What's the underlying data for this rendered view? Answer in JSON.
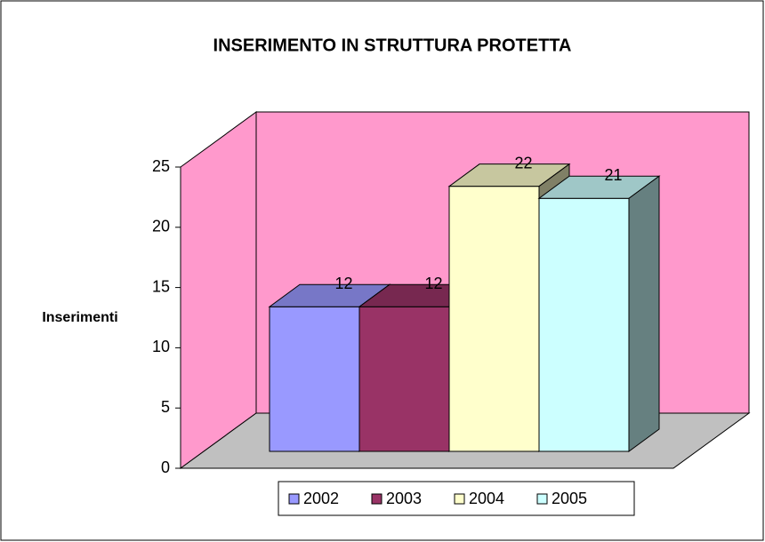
{
  "chart_data": {
    "type": "bar3d",
    "title": "INSERIMENTO  IN STRUTTURA PROTETTA",
    "y_label": "Inserimenti",
    "categories": [
      null
    ],
    "series": [
      {
        "name": "2002",
        "color": "#9999ff",
        "values": [
          12
        ]
      },
      {
        "name": "2003",
        "color": "#993366",
        "values": [
          12
        ]
      },
      {
        "name": "2004",
        "color": "#ffffcc",
        "values": [
          22
        ]
      },
      {
        "name": "2005",
        "color": "#ccffff",
        "values": [
          21
        ]
      }
    ],
    "ylim": [
      0,
      25
    ],
    "yticks": [
      0,
      5,
      10,
      15,
      20,
      25
    ],
    "legend": "bottom",
    "grid": false
  }
}
